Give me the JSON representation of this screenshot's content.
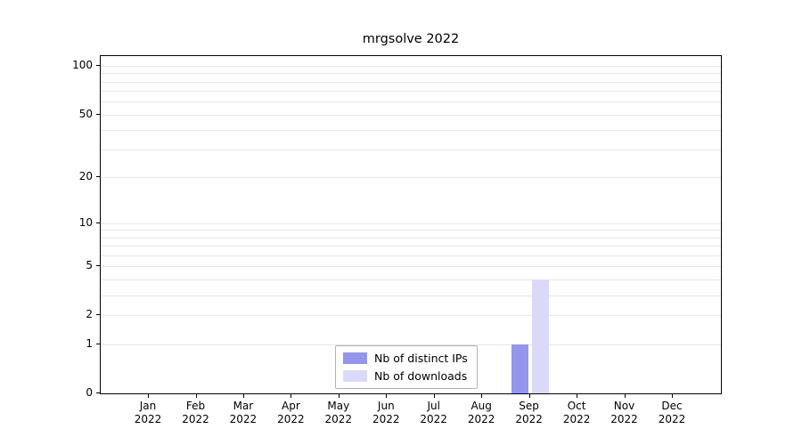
{
  "title": "mrgsolve 2022",
  "chart_data": {
    "type": "bar",
    "title": "mrgsolve 2022",
    "xlabel": "",
    "ylabel": "",
    "y_scale": "log1p",
    "grid": "horizontal log minor gridlines, light gray",
    "legend_position": "bottom-center inside plot",
    "categories": [
      "Jan",
      "Feb",
      "Mar",
      "Apr",
      "May",
      "Jun",
      "Jul",
      "Aug",
      "Sep",
      "Oct",
      "Nov",
      "Dec"
    ],
    "x_year_label": "2022",
    "yticks": [
      0,
      1,
      2,
      5,
      10,
      20,
      50,
      100
    ],
    "ylim": [
      0,
      115
    ],
    "series": [
      {
        "name": "Nb of distinct IPs",
        "color": "#9595ec",
        "values": [
          0,
          0,
          0,
          0,
          0,
          0,
          0,
          0,
          1,
          0,
          0,
          0
        ]
      },
      {
        "name": "Nb of downloads",
        "color": "#dadaf8",
        "values": [
          0,
          0,
          0,
          0,
          0,
          0,
          0,
          0,
          4,
          0,
          0,
          0
        ]
      }
    ]
  }
}
